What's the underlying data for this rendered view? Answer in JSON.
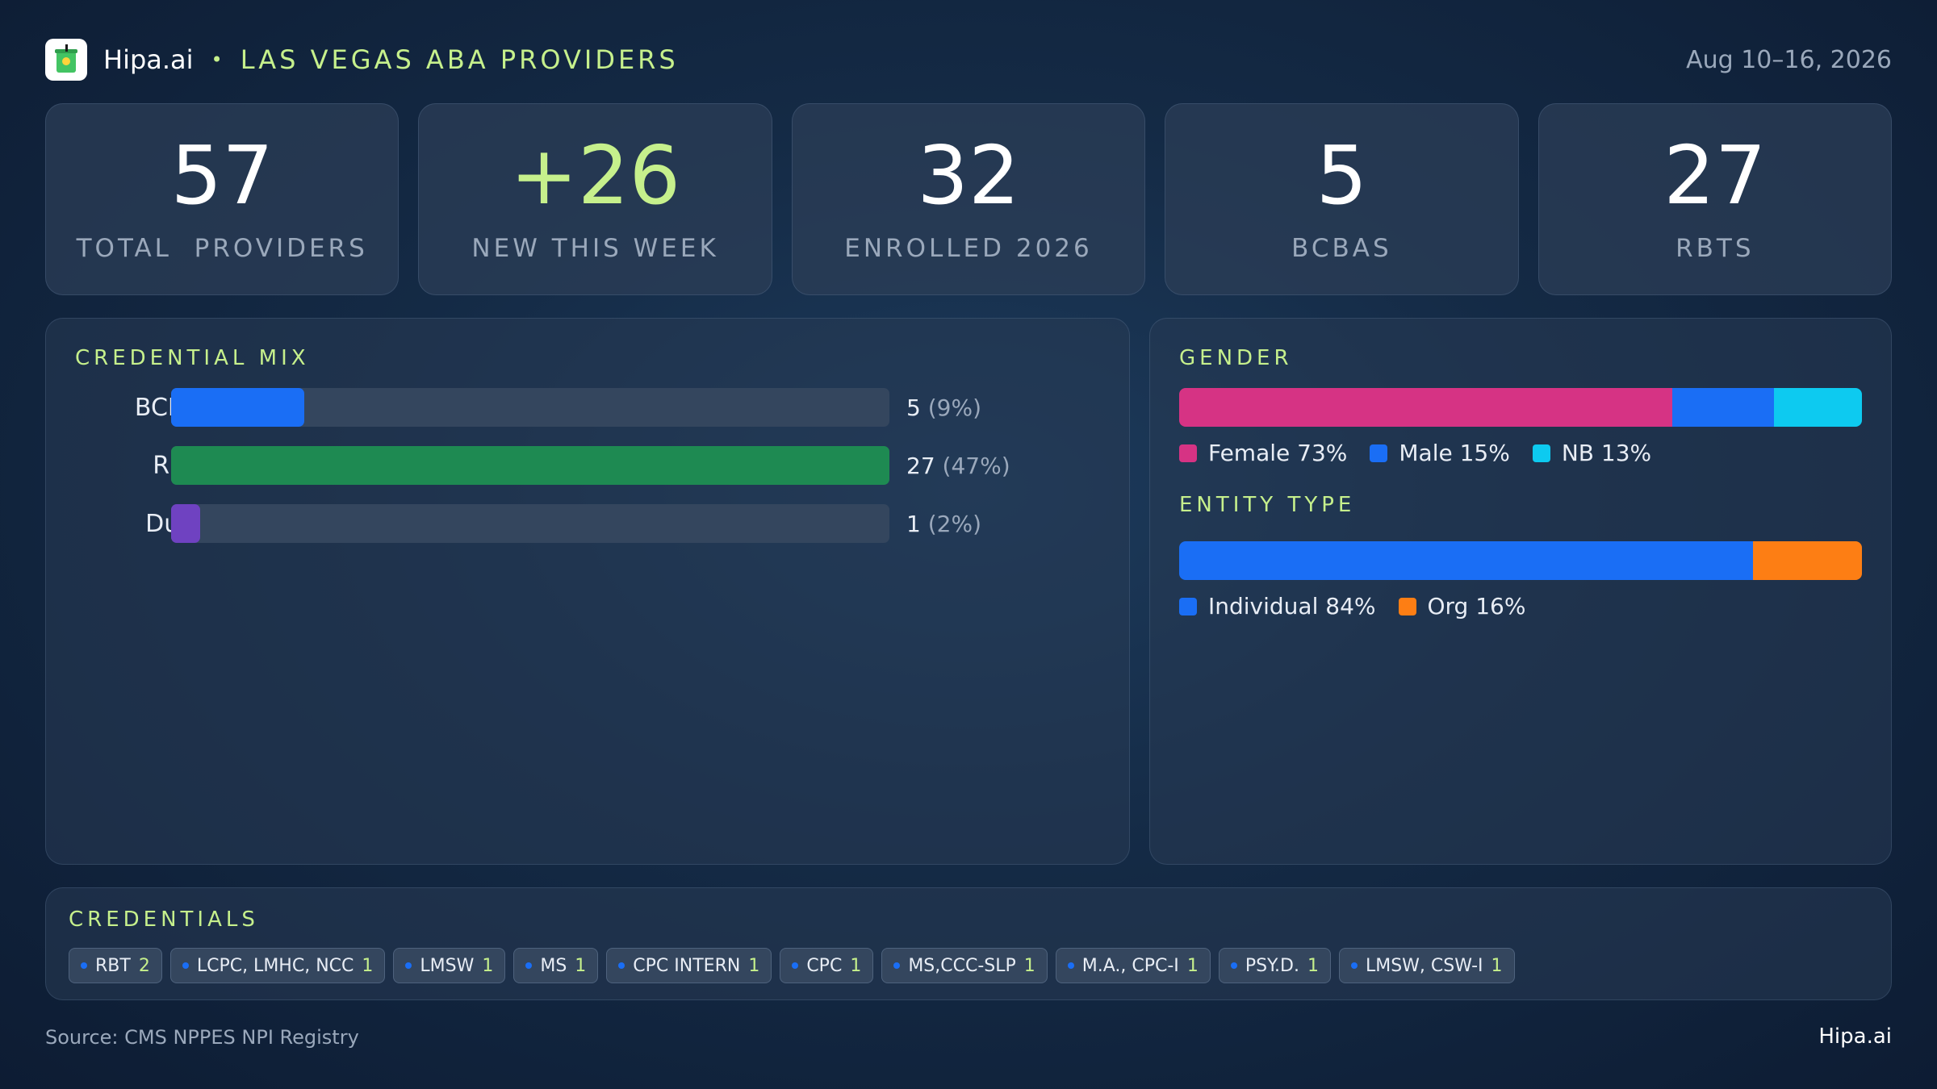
{
  "header": {
    "brand": "Hipa.ai",
    "separator": "•",
    "subtitle": "LAS VEGAS ABA PROVIDERS",
    "date_range": "Aug 10–16, 2026"
  },
  "kpis": [
    {
      "value": "57",
      "label": "TOTAL  PROVIDERS"
    },
    {
      "value": "+26",
      "label": "NEW THIS WEEK"
    },
    {
      "value": "32",
      "label": "ENROLLED 2026"
    },
    {
      "value": "5",
      "label": "BCBAS"
    },
    {
      "value": "27",
      "label": "RBTS"
    }
  ],
  "colors": {
    "accent": "#c6f08c",
    "bcba": "#1a6ef5",
    "rbt": "#1e8a52",
    "dual": "#6f42c1",
    "female": "#d63384",
    "male": "#1a6ef5",
    "nb": "#0dcaf0",
    "individual": "#1a6ef5",
    "org": "#fd7e14"
  },
  "chart_data": [
    {
      "type": "bar",
      "title": "CREDENTIAL MIX",
      "orientation": "horizontal",
      "categories": [
        "BCBA",
        "RBT",
        "Dual"
      ],
      "values": [
        5,
        27,
        1
      ],
      "percent_labels": [
        "(9%)",
        "(47%)",
        "(2%)"
      ],
      "xlim": [
        0,
        27
      ]
    },
    {
      "type": "bar",
      "subtype": "stacked-100",
      "title": "GENDER",
      "series": [
        {
          "name": "Female",
          "label": "Female 73%",
          "value": 73,
          "color_key": "female"
        },
        {
          "name": "Male",
          "label": "Male 15%",
          "value": 15,
          "color_key": "male"
        },
        {
          "name": "NB",
          "label": "NB 13%",
          "value": 13,
          "color_key": "nb"
        }
      ]
    },
    {
      "type": "bar",
      "subtype": "stacked-100",
      "title": "ENTITY TYPE",
      "series": [
        {
          "name": "Individual",
          "label": "Individual 84%",
          "value": 84,
          "color_key": "individual"
        },
        {
          "name": "Org",
          "label": "Org 16%",
          "value": 16,
          "color_key": "org"
        }
      ]
    }
  ],
  "credentials": {
    "title": "CREDENTIALS",
    "chips": [
      {
        "label": "RBT",
        "count": "2"
      },
      {
        "label": "LCPC, LMHC, NCC",
        "count": "1"
      },
      {
        "label": "LMSW",
        "count": "1"
      },
      {
        "label": "MS",
        "count": "1"
      },
      {
        "label": "CPC INTERN",
        "count": "1"
      },
      {
        "label": "CPC",
        "count": "1"
      },
      {
        "label": "MS,CCC-SLP",
        "count": "1"
      },
      {
        "label": "M.A., CPC-I",
        "count": "1"
      },
      {
        "label": "PSY.D.",
        "count": "1"
      },
      {
        "label": "LMSW, CSW-I",
        "count": "1"
      }
    ]
  },
  "footer": {
    "source": "Source: CMS NPPES NPI Registry",
    "brand": "Hipa.ai"
  }
}
